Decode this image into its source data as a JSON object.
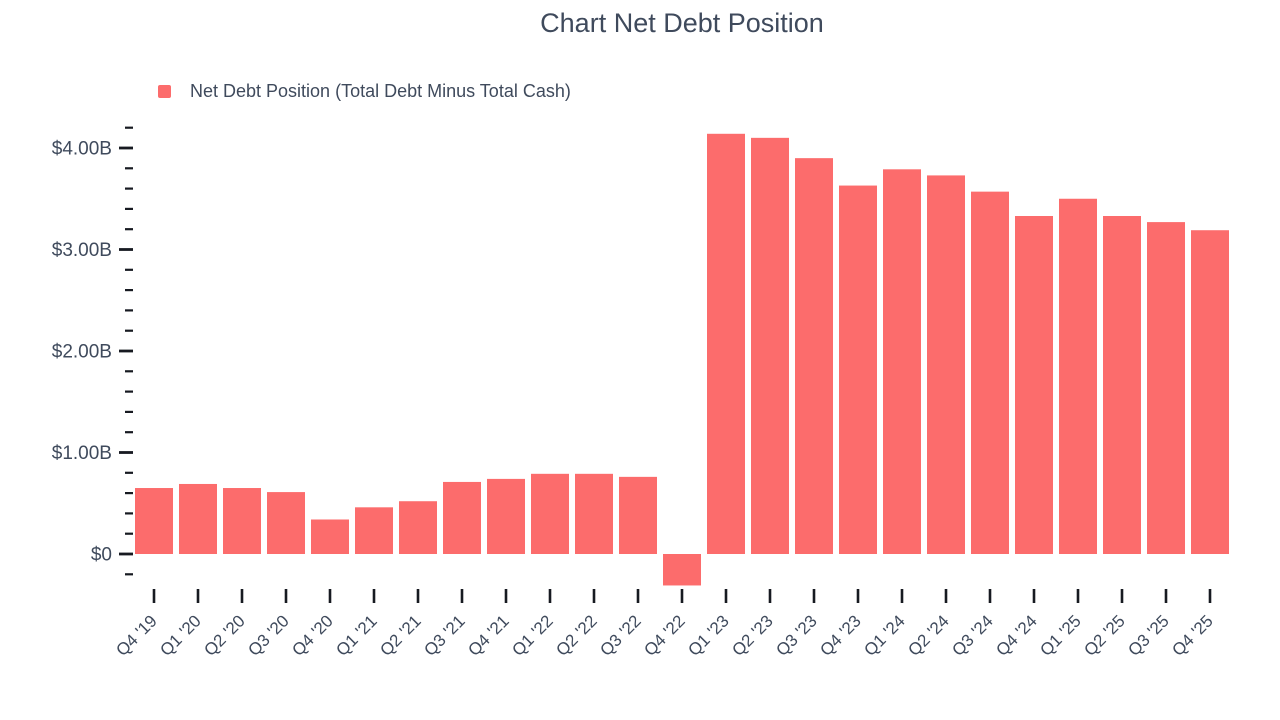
{
  "title": "Chart Net Debt Position",
  "legend": {
    "label": "Net Debt Position (Total Debt Minus Total Cash)"
  },
  "colors": {
    "bar": "#FC6C6C",
    "text": "#3F4A5C",
    "tick_marks": "#171A21",
    "background": "#FFFFFF"
  },
  "chart_data": {
    "type": "bar",
    "title": "Chart Net Debt Position",
    "series_name": "Net Debt Position (Total Debt Minus Total Cash)",
    "categories": [
      "Q4 '19",
      "Q1 '20",
      "Q2 '20",
      "Q3 '20",
      "Q4 '20",
      "Q1 '21",
      "Q2 '21",
      "Q3 '21",
      "Q4 '21",
      "Q1 '22",
      "Q2 '22",
      "Q3 '22",
      "Q4 '22",
      "Q1 '23",
      "Q2 '23",
      "Q3 '23",
      "Q4 '23",
      "Q1 '24",
      "Q2 '24",
      "Q3 '24",
      "Q4 '24",
      "Q1 '25",
      "Q2 '25",
      "Q3 '25",
      "Q4 '25"
    ],
    "values": [
      0.65,
      0.69,
      0.65,
      0.61,
      0.34,
      0.46,
      0.52,
      0.71,
      0.74,
      0.79,
      0.79,
      0.76,
      -0.31,
      4.14,
      4.1,
      3.9,
      3.63,
      3.79,
      3.73,
      3.57,
      3.33,
      3.5,
      3.33,
      3.27,
      3.19
    ],
    "values_unit": "billions of dollars",
    "xlabel": "",
    "ylabel": "",
    "y_axis": {
      "tick_values": [
        0,
        1,
        2,
        3,
        4
      ],
      "tick_labels": [
        "$0",
        "$1.00B",
        "$2.00B",
        "$3.00B",
        "$4.00B"
      ],
      "minor_tick_step": 0.2,
      "range": [
        -0.4,
        4.2
      ]
    },
    "grid": false,
    "legend_position": "top-left"
  }
}
